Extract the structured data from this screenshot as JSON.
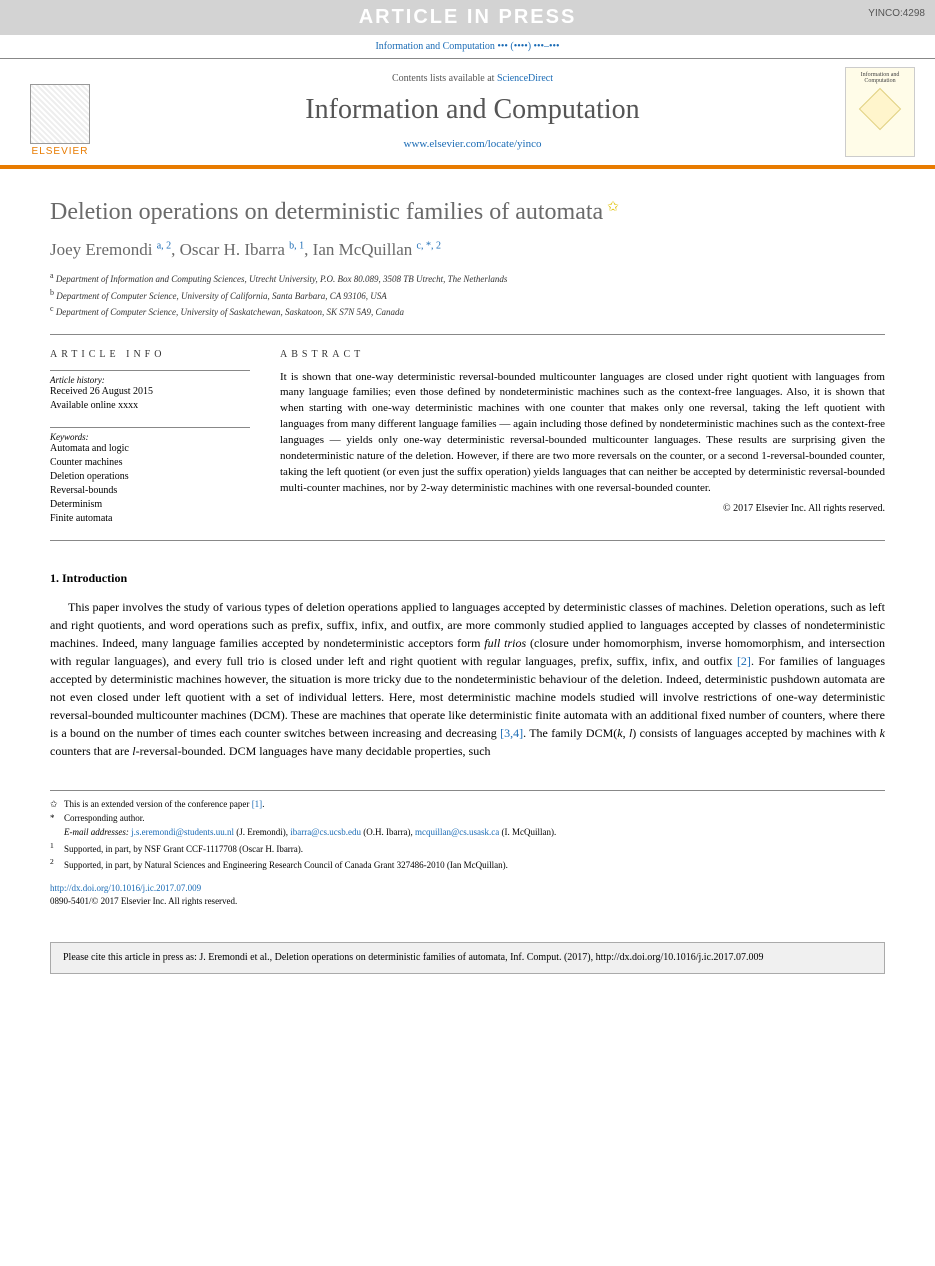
{
  "banner": {
    "text": "ARTICLE IN PRESS",
    "code": "YINCO:4298",
    "bg_color": "#d3d3d3",
    "text_color": "#ffffff"
  },
  "journal_strip": "Information and Computation ••• (••••) •••–•••",
  "masthead": {
    "contents_prefix": "Contents lists available at ",
    "contents_link": "ScienceDirect",
    "journal_name": "Information and Computation",
    "journal_url": "www.elsevier.com/locate/yinco",
    "publisher": "ELSEVIER",
    "cover_title": "Information and Computation"
  },
  "title": "Deletion operations on deterministic families of automata",
  "authors_html": "Joey Eremondi <sup>a, 2</sup>, Oscar H. Ibarra <sup>b, 1</sup>, Ian McQuillan <sup>c, *, 2</sup>",
  "affiliations": [
    {
      "mark": "a",
      "text": "Department of Information and Computing Sciences, Utrecht University, P.O. Box 80.089, 3508 TB Utrecht, The Netherlands"
    },
    {
      "mark": "b",
      "text": "Department of Computer Science, University of California, Santa Barbara, CA 93106, USA"
    },
    {
      "mark": "c",
      "text": "Department of Computer Science, University of Saskatchewan, Saskatoon, SK S7N 5A9, Canada"
    }
  ],
  "article_info": {
    "heading": "ARTICLE INFO",
    "history_head": "Article history:",
    "history": "Received 26 August 2015\nAvailable online xxxx",
    "keywords_head": "Keywords:",
    "keywords": "Automata and logic\nCounter machines\nDeletion operations\nReversal-bounds\nDeterminism\nFinite automata"
  },
  "abstract": {
    "heading": "ABSTRACT",
    "text": "It is shown that one-way deterministic reversal-bounded multicounter languages are closed under right quotient with languages from many language families; even those defined by nondeterministic machines such as the context-free languages. Also, it is shown that when starting with one-way deterministic machines with one counter that makes only one reversal, taking the left quotient with languages from many different language families — again including those defined by nondeterministic machines such as the context-free languages — yields only one-way deterministic reversal-bounded multicounter languages. These results are surprising given the nondeterministic nature of the deletion. However, if there are two more reversals on the counter, or a second 1-reversal-bounded counter, taking the left quotient (or even just the suffix operation) yields languages that can neither be accepted by deterministic reversal-bounded multi-counter machines, nor by 2-way deterministic machines with one reversal-bounded counter.",
    "copyright": "© 2017 Elsevier Inc. All rights reserved."
  },
  "section1": {
    "heading": "1. Introduction",
    "paragraph": "This paper involves the study of various types of deletion operations applied to languages accepted by deterministic classes of machines. Deletion operations, such as left and right quotients, and word operations such as prefix, suffix, infix, and outfix, are more commonly studied applied to languages accepted by classes of nondeterministic machines. Indeed, many language families accepted by nondeterministic acceptors form <i>full trios</i> (closure under homomorphism, inverse homomorphism, and intersection with regular languages), and every full trio is closed under left and right quotient with regular languages, prefix, suffix, infix, and outfix <r>[2]</r>. For families of languages accepted by deterministic machines however, the situation is more tricky due to the nondeterministic behaviour of the deletion. Indeed, deterministic pushdown automata are not even closed under left quotient with a set of individual letters. Here, most deterministic machine models studied will involve restrictions of one-way deterministic reversal-bounded multicounter machines (DCM). These are machines that operate like deterministic finite automata with an additional fixed number of counters, where there is a bound on the number of times each counter switches between increasing and decreasing <r>[3,4]</r>. The family DCM(<i>k</i>, <i>l</i>) consists of languages accepted by machines with <i>k</i> counters that are <i>l</i>-reversal-bounded. DCM languages have many decidable properties, such"
  },
  "footnotes": {
    "star": "This is an extended version of the conference paper [1].",
    "corr": "Corresponding author.",
    "emails_label": "E-mail addresses:",
    "emails": [
      {
        "addr": "j.s.eremondi@students.uu.nl",
        "who": "(J. Eremondi)"
      },
      {
        "addr": "ibarra@cs.ucsb.edu",
        "who": "(O.H. Ibarra)"
      },
      {
        "addr": "mcquillan@cs.usask.ca",
        "who": "(I. McQuillan)"
      }
    ],
    "note1": "Supported, in part, by NSF Grant CCF-1117708 (Oscar H. Ibarra).",
    "note2": "Supported, in part, by Natural Sciences and Engineering Research Council of Canada Grant 327486-2010 (Ian McQuillan)."
  },
  "doi": {
    "url": "http://dx.doi.org/10.1016/j.ic.2017.07.009",
    "issn_line": "0890-5401/© 2017 Elsevier Inc. All rights reserved."
  },
  "cite_box": "Please cite this article in press as: J. Eremondi et al., Deletion operations on deterministic families of automata, Inf. Comput. (2017), http://dx.doi.org/10.1016/j.ic.2017.07.009",
  "colors": {
    "accent_orange": "#e87b00",
    "link_blue": "#1a6bb5",
    "title_gray": "#6a6a6a",
    "star_yellow": "#e0c000"
  }
}
